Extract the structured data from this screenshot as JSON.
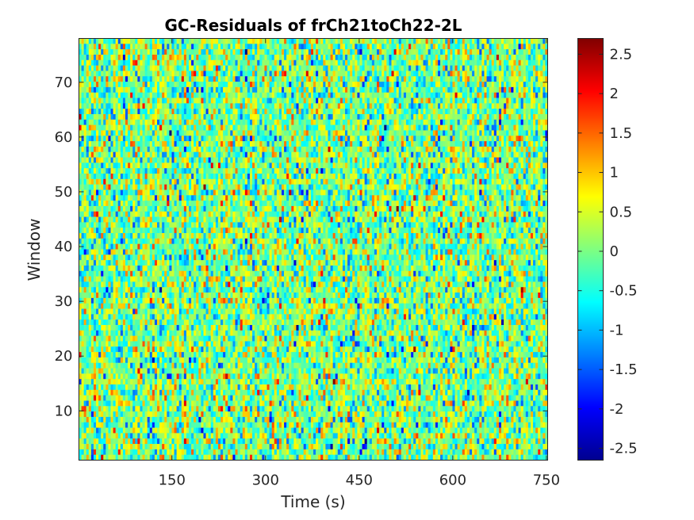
{
  "chart_data": {
    "type": "heatmap",
    "title": "GC-Residuals of frCh21toCh22-2L",
    "xlabel": "Time (s)",
    "ylabel": "Window",
    "xlim": [
      1,
      752
    ],
    "ylim": [
      1,
      78
    ],
    "x_ticks": [
      150,
      300,
      450,
      600,
      750
    ],
    "y_ticks": [
      10,
      20,
      30,
      40,
      50,
      60,
      70
    ],
    "colorbar": {
      "colormap": "jet",
      "range": [
        -2.65,
        2.7
      ],
      "ticks": [
        -2.5,
        -2,
        -1.5,
        -1,
        -0.5,
        0,
        0.5,
        1,
        1.5,
        2,
        2.5
      ]
    },
    "grid_columns": 192,
    "grid_rows": 78,
    "value_distribution": "noise-like residuals, approximately normal, mean 0, std 0.7",
    "grid": false
  }
}
